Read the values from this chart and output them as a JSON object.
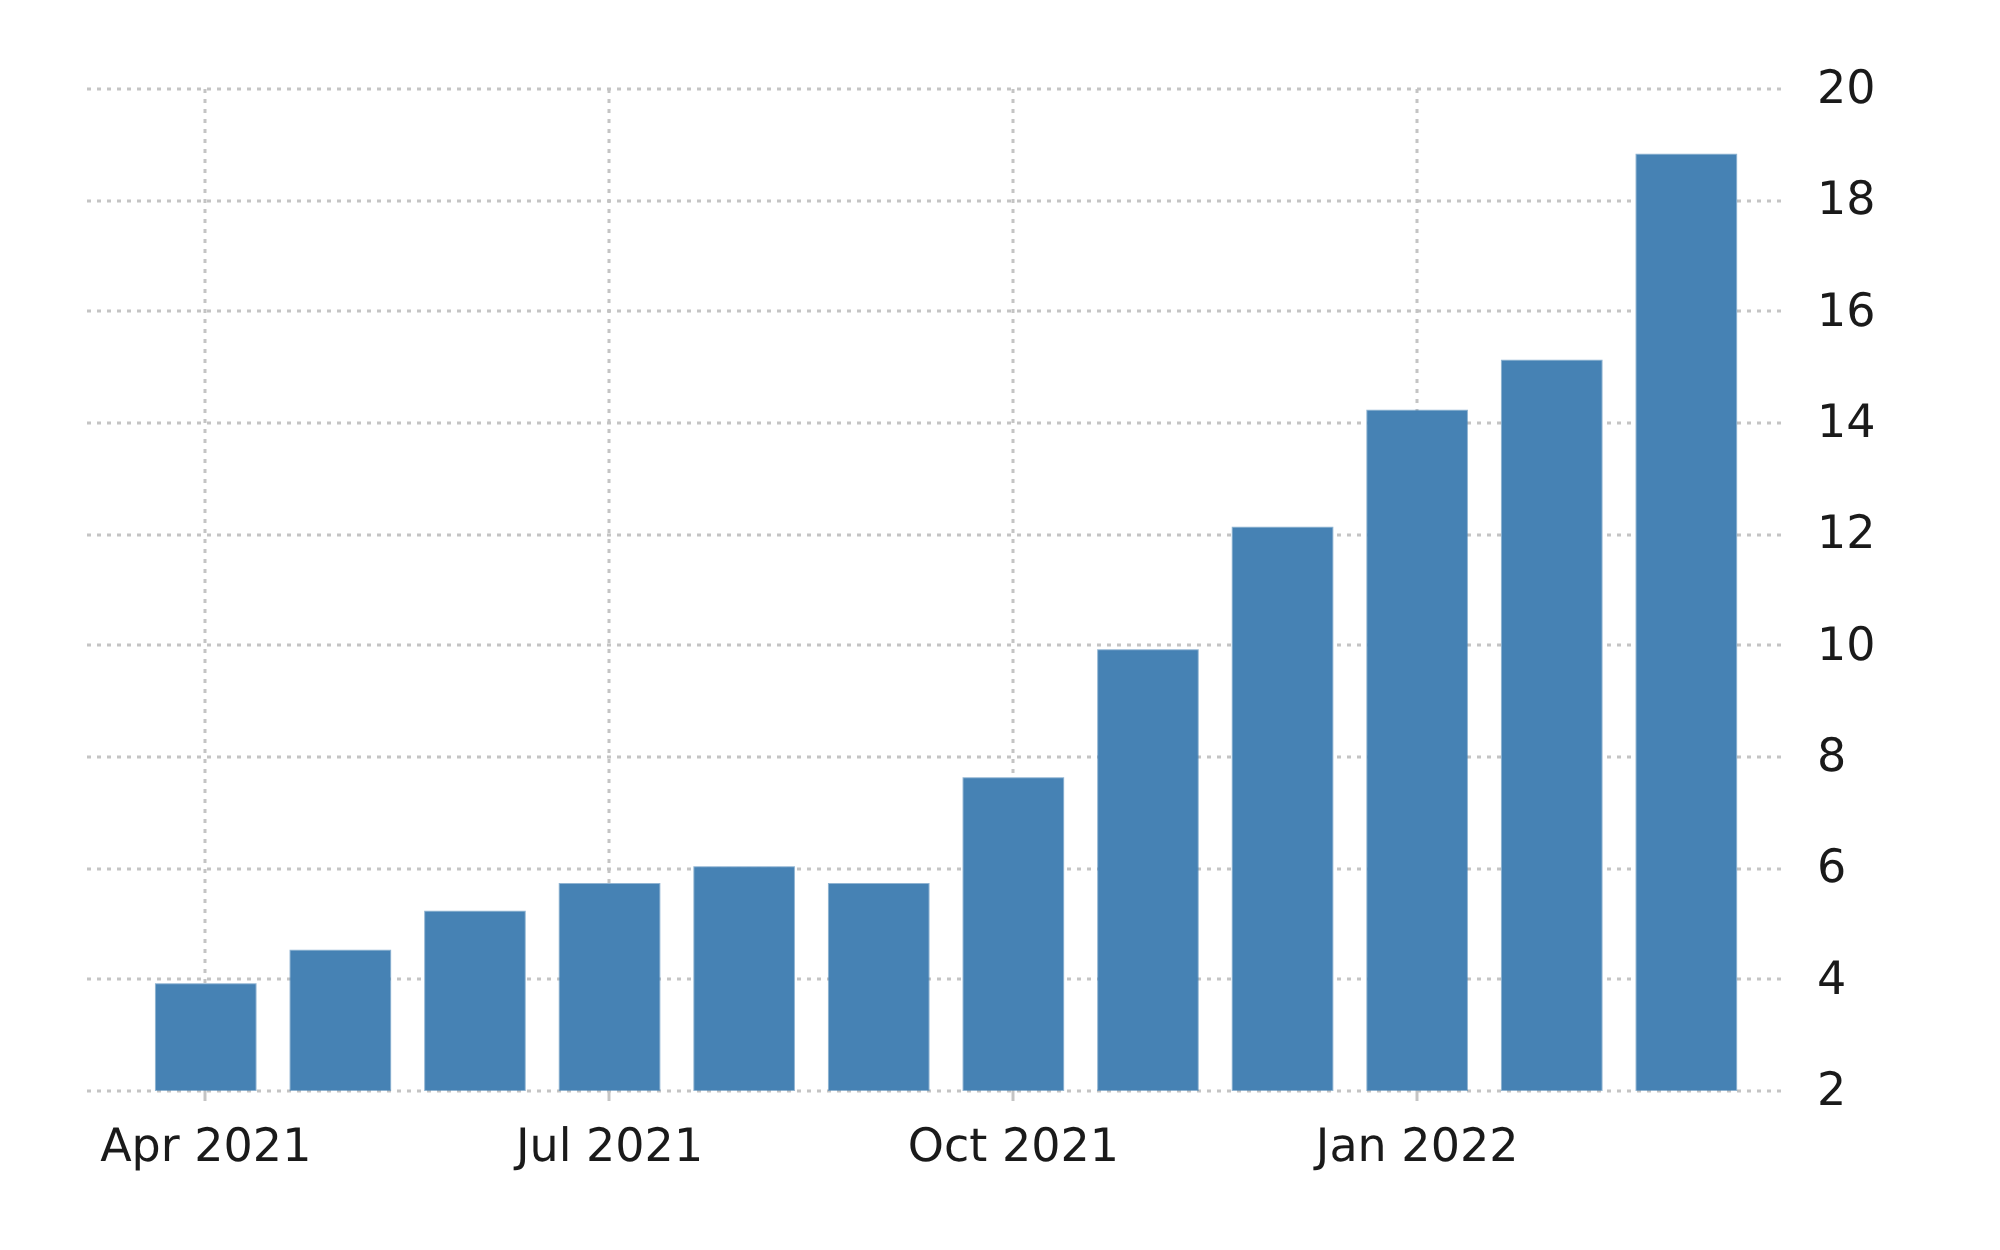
{
  "chart_data": {
    "type": "bar",
    "categories": [
      "Apr 2021",
      null,
      null,
      "Jul 2021",
      null,
      null,
      "Oct 2021",
      null,
      null,
      "Jan 2022",
      null,
      null
    ],
    "values": [
      3.9,
      4.5,
      5.2,
      5.7,
      6.0,
      5.7,
      7.6,
      9.9,
      12.1,
      14.2,
      15.1,
      18.8
    ],
    "color": "#4682b4",
    "ylim": [
      2,
      20
    ],
    "yticks": [
      2,
      4,
      6,
      8,
      10,
      12,
      14,
      16,
      18,
      20
    ],
    "grid": true
  }
}
